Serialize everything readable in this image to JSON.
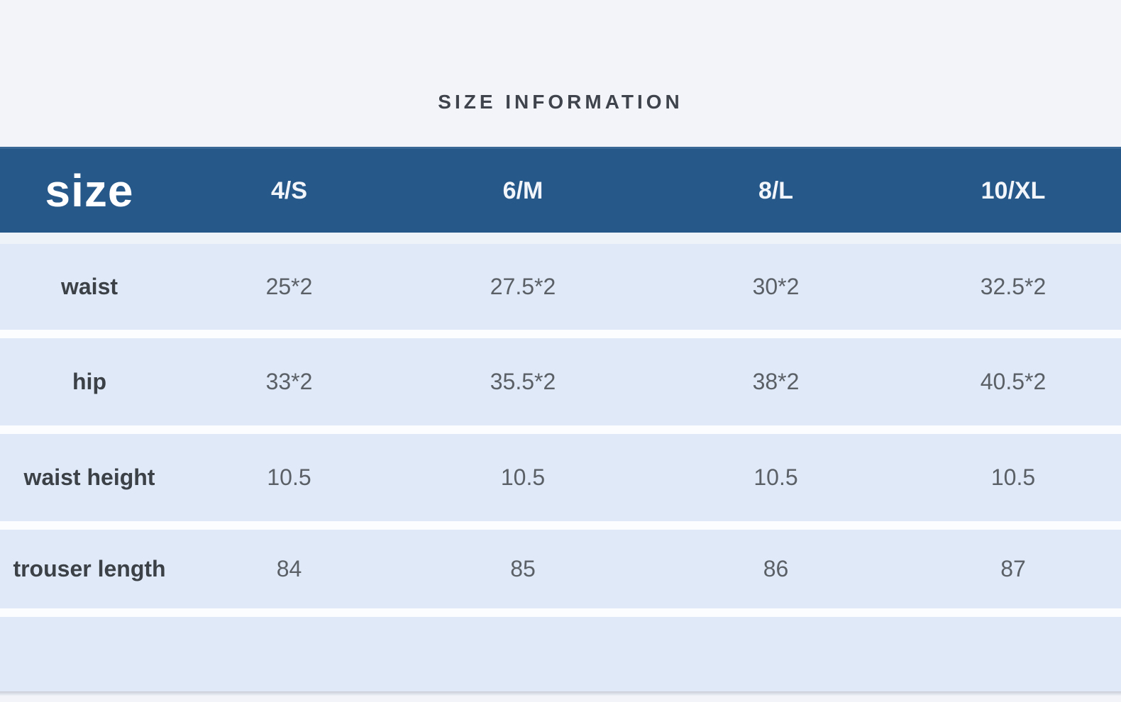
{
  "title": "SIZE INFORMATION",
  "colors": {
    "header_bg": "#27588a",
    "row_bg": "#dfe9f7",
    "page_bg": "#f2f4fa",
    "header_text": "#ffffff",
    "label_text": "#3c4147",
    "value_text": "#5b6067"
  },
  "chart_data": {
    "type": "table",
    "title": "SIZE INFORMATION",
    "corner_label": "size",
    "columns": [
      "4/S",
      "6/M",
      "8/L",
      "10/XL"
    ],
    "rows": [
      {
        "label": "waist",
        "values": [
          "25*2",
          "27.5*2",
          "30*2",
          "32.5*2"
        ]
      },
      {
        "label": "hip",
        "values": [
          "33*2",
          "35.5*2",
          "38*2",
          "40.5*2"
        ]
      },
      {
        "label": "waist height",
        "values": [
          "10.5",
          "10.5",
          "10.5",
          "10.5"
        ]
      },
      {
        "label": "trouser length",
        "values": [
          "84",
          "85",
          "86",
          "87"
        ]
      }
    ]
  }
}
